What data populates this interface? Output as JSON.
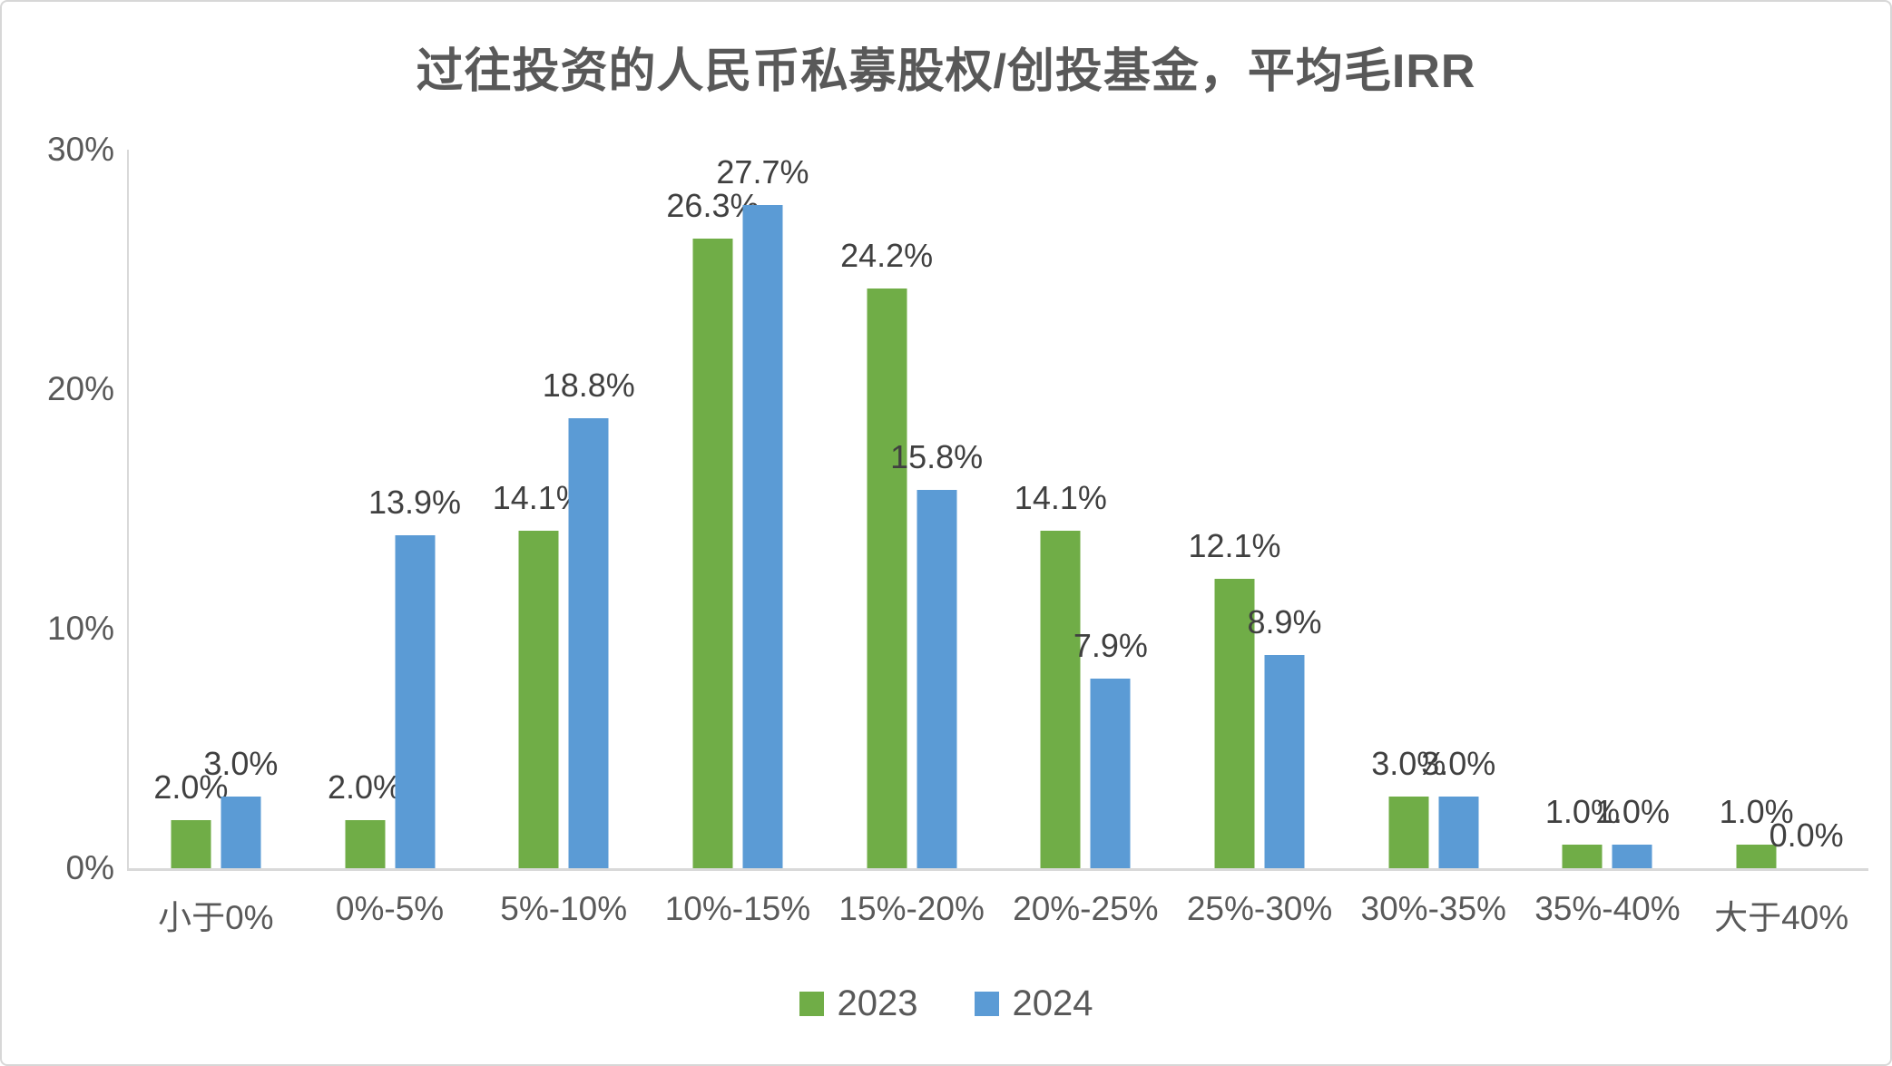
{
  "chart_data": {
    "type": "bar",
    "title": "过往投资的人民币私募股权/创投基金，平均毛IRR",
    "categories": [
      "小于0%",
      "0%-5%",
      "5%-10%",
      "10%-15%",
      "15%-20%",
      "20%-25%",
      "25%-30%",
      "30%-35%",
      "35%-40%",
      "大于40%"
    ],
    "series": [
      {
        "name": "2023",
        "color": "#70AD47",
        "values": [
          2.0,
          2.0,
          14.1,
          26.3,
          24.2,
          14.1,
          12.1,
          3.0,
          1.0,
          1.0
        ],
        "labels": [
          "2.0%",
          "2.0%",
          "14.1%",
          "26.3%",
          "24.2%",
          "14.1%",
          "12.1%",
          "3.0%",
          "1.0%",
          "1.0%"
        ]
      },
      {
        "name": "2024",
        "color": "#5B9BD5",
        "values": [
          3.0,
          13.9,
          18.8,
          27.7,
          15.8,
          7.9,
          8.9,
          3.0,
          1.0,
          0.0
        ],
        "labels": [
          "3.0%",
          "13.9%",
          "18.8%",
          "27.7%",
          "15.8%",
          "7.9%",
          "8.9%",
          "3.0%",
          "1.0%",
          "0.0%"
        ]
      }
    ],
    "xlabel": "",
    "ylabel": "",
    "ylim": [
      0,
      30
    ],
    "y_ticks": [
      {
        "value": 0,
        "label": "0%"
      },
      {
        "value": 10,
        "label": "10%"
      },
      {
        "value": 20,
        "label": "20%"
      },
      {
        "value": 30,
        "label": "30%"
      }
    ],
    "grid": false,
    "legend_position": "bottom"
  }
}
